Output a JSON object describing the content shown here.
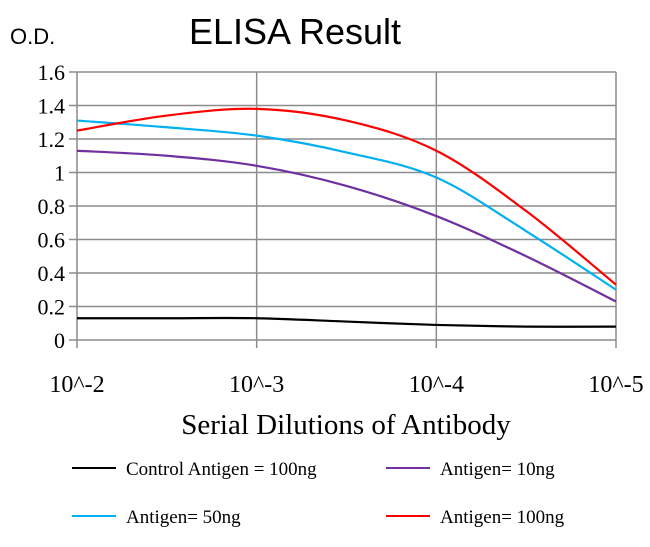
{
  "chart_data": {
    "type": "line",
    "title": "ELISA Result",
    "ylabel": "O.D.",
    "xlabel": "Serial Dilutions of Antibody",
    "x_ticks": [
      "10^-2",
      "10^-3",
      "10^-4",
      "10^-5"
    ],
    "y_ticks": [
      "0",
      "0.2",
      "0.4",
      "0.6",
      "0.8",
      "1",
      "1.2",
      "1.4",
      "1.6"
    ],
    "ylim": [
      0,
      1.6
    ],
    "x_log10_dilution": [
      -2,
      -2.5,
      -3,
      -3.5,
      -4,
      -4.5,
      -5
    ],
    "grid": true,
    "legend_position": "bottom",
    "series": [
      {
        "name": "Control Antigen = 100ng",
        "color": "#000000",
        "values": [
          0.13,
          0.13,
          0.13,
          0.11,
          0.09,
          0.08,
          0.08
        ]
      },
      {
        "name": "Antigen= 10ng",
        "color": "#7030a0",
        "values": [
          1.13,
          1.1,
          1.04,
          0.92,
          0.74,
          0.5,
          0.23
        ]
      },
      {
        "name": "Antigen= 50ng",
        "color": "#00b0f0",
        "values": [
          1.31,
          1.27,
          1.22,
          1.12,
          0.97,
          0.65,
          0.3
        ]
      },
      {
        "name": "Antigen= 100ng",
        "color": "#ff0000",
        "values": [
          1.25,
          1.34,
          1.38,
          1.31,
          1.13,
          0.77,
          0.33
        ]
      }
    ]
  }
}
